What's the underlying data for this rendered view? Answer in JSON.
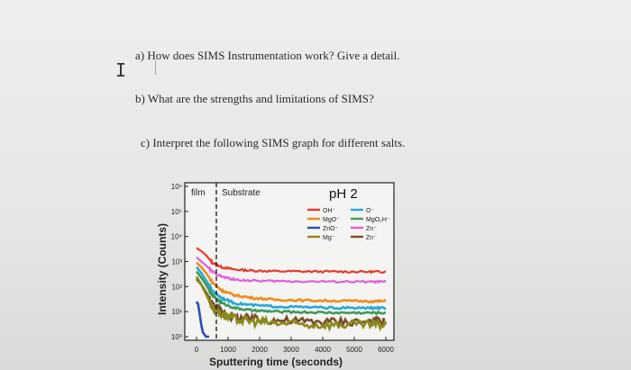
{
  "document": {
    "questions": [
      "a) How does SIMS Instrumentation work? Give a detail.",
      "b) What are the strengths and limitations of SIMS?",
      "c) Interpret the following SIMS graph for different salts."
    ],
    "cursor_glyph": "I"
  },
  "chart_data": {
    "type": "line",
    "title": "pH 2",
    "xlabel": "Sputtering time (seconds)",
    "ylabel": "Intensity (Counts)",
    "region_labels": [
      "film",
      "Substrate"
    ],
    "x_ticks": [
      "0",
      "1000",
      "2000",
      "3000",
      "4000",
      "5000",
      "6000"
    ],
    "y_ticks": [
      "10⁰",
      "10¹",
      "10²",
      "10³",
      "10⁴",
      "10⁵",
      "10⁶"
    ],
    "xlim": [
      0,
      6000
    ],
    "ylim_log10": [
      0,
      6
    ],
    "y_scale": "log",
    "legend_position": "top-right",
    "series": [
      {
        "name": "OH⁻",
        "color": "#e63b2e",
        "x": [
          0,
          150,
          300,
          500,
          800,
          1200,
          1800,
          2500,
          3500,
          4500,
          5500,
          6000
        ],
        "y": [
          3500,
          2600,
          1800,
          900,
          600,
          480,
          430,
          410,
          400,
          395,
          390,
          390
        ]
      },
      {
        "name": "MgO⁻",
        "color": "#f08a1c",
        "x": [
          0,
          150,
          300,
          500,
          800,
          1200,
          1800,
          2500,
          3500,
          4500,
          5500,
          6000
        ],
        "y": [
          900,
          600,
          350,
          150,
          70,
          45,
          35,
          30,
          28,
          27,
          26,
          26
        ]
      },
      {
        "name": "ZnO⁻",
        "color": "#2a4fb0",
        "x": [
          0,
          50,
          100,
          150,
          200,
          300,
          400
        ],
        "y": [
          25,
          20,
          8,
          3,
          1.5,
          1,
          1
        ]
      },
      {
        "name": "Mg⁻",
        "color": "#8a8a1a",
        "x": [
          0,
          150,
          300,
          500,
          800,
          1200,
          1800,
          2500,
          3500,
          4500,
          5500,
          6000
        ],
        "y": [
          250,
          120,
          50,
          15,
          8,
          5,
          4,
          3.5,
          3,
          3,
          3,
          3
        ]
      },
      {
        "name": "O⁻",
        "color": "#28a8d8",
        "x": [
          0,
          150,
          300,
          500,
          800,
          1200,
          1800,
          2500,
          3500,
          4500,
          5500,
          6000
        ],
        "y": [
          600,
          350,
          180,
          70,
          35,
          22,
          18,
          16,
          15,
          14,
          14,
          14
        ]
      },
      {
        "name": "MgO₂H⁻",
        "color": "#3f9a5a",
        "x": [
          0,
          150,
          300,
          500,
          800,
          1200,
          1800,
          2500,
          3500,
          4500,
          5500,
          6000
        ],
        "y": [
          400,
          230,
          120,
          45,
          22,
          14,
          11,
          10,
          9.5,
          9,
          9,
          9
        ]
      },
      {
        "name": "Zn⁻",
        "color": "#e05fd8",
        "x": [
          0,
          150,
          300,
          500,
          800,
          1200,
          1800,
          2500,
          3500,
          4500,
          5500,
          6000
        ],
        "y": [
          1500,
          1000,
          700,
          400,
          250,
          190,
          170,
          165,
          160,
          158,
          155,
          155
        ]
      },
      {
        "name": "Zn⁻",
        "color": "#7a4b2a",
        "x": [
          0,
          150,
          300,
          500,
          800,
          1200,
          1800,
          2500,
          3500,
          4500,
          5500,
          6000
        ],
        "y": [
          200,
          120,
          60,
          20,
          10,
          6,
          5,
          4.5,
          4,
          4,
          4,
          4
        ]
      }
    ]
  }
}
